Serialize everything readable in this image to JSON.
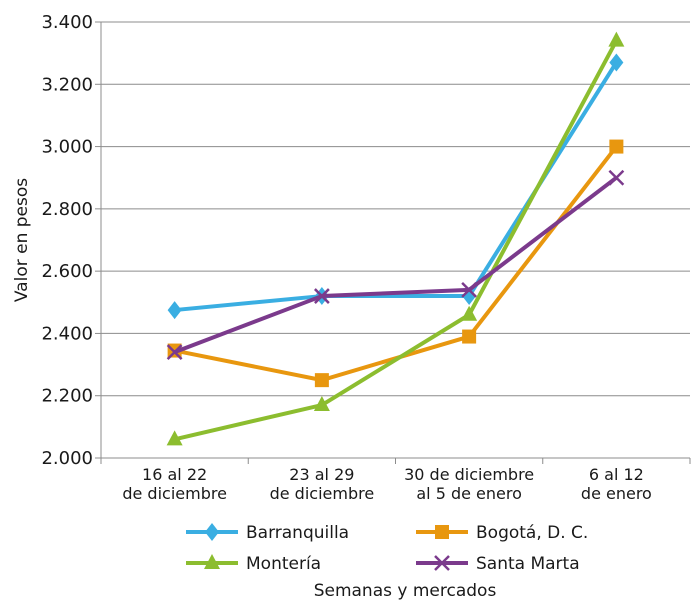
{
  "chart_data": {
    "type": "line",
    "xlabel": "Semanas y mercados",
    "ylabel": "Valor en pesos",
    "ylim": [
      2000,
      3400
    ],
    "ytick_values": [
      2000,
      2200,
      2400,
      2600,
      2800,
      3000,
      3200,
      3400
    ],
    "ytick_labels": [
      "2.000",
      "2.200",
      "2.400",
      "2.600",
      "2.800",
      "3.000",
      "3.200",
      "3.400"
    ],
    "grid": "horizontal",
    "legend_position": "bottom",
    "categories": [
      [
        "16 al 22",
        "de diciembre"
      ],
      [
        "23 al 29",
        "de diciembre"
      ],
      [
        "30 de diciembre",
        "al 5 de enero"
      ],
      [
        "6 al 12",
        "de enero"
      ]
    ],
    "series": [
      {
        "name": "Barranquilla",
        "values": [
          2475,
          2520,
          2520,
          3270
        ],
        "color": "#3aaee2",
        "marker": "diamond"
      },
      {
        "name": "Bogotá, D. C.",
        "values": [
          2345,
          2250,
          2390,
          3000
        ],
        "color": "#e8970f",
        "marker": "square"
      },
      {
        "name": "Montería",
        "values": [
          2060,
          2170,
          2460,
          3340
        ],
        "color": "#8cbd2f",
        "marker": "triangle"
      },
      {
        "name": "Santa Marta",
        "values": [
          2340,
          2520,
          2540,
          2900
        ],
        "color": "#7b3a8c",
        "marker": "x"
      }
    ]
  }
}
